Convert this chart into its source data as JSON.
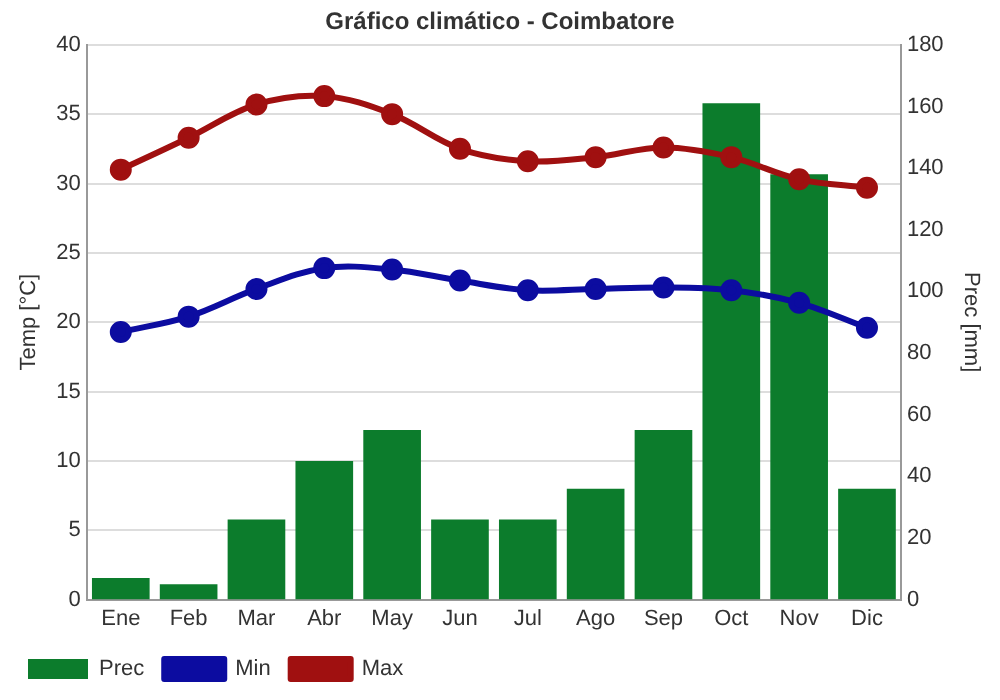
{
  "chart_data": {
    "type": "line",
    "title": "Gráfico climático - Coimbatore",
    "ylabel": "Temp [°C]",
    "y2label": "Prec [mm]",
    "categories": [
      "Ene",
      "Feb",
      "Mar",
      "Abr",
      "May",
      "Jun",
      "Jul",
      "Ago",
      "Sep",
      "Oct",
      "Nov",
      "Dic"
    ],
    "series": [
      {
        "name": "Prec",
        "type": "bar",
        "axis": "y2",
        "color": "#0c7c2c",
        "values": [
          7,
          5,
          26,
          45,
          55,
          26,
          26,
          36,
          55,
          161,
          138,
          36
        ]
      },
      {
        "name": "Min",
        "color": "#0c0ca0",
        "values": [
          19.3,
          20.4,
          22.4,
          23.9,
          23.8,
          23.0,
          22.3,
          22.4,
          22.5,
          22.3,
          21.4,
          19.6
        ]
      },
      {
        "name": "Max",
        "color": "#a01010",
        "values": [
          31.0,
          33.3,
          35.7,
          36.3,
          35.0,
          32.5,
          31.6,
          31.9,
          32.6,
          31.9,
          30.3,
          29.7
        ]
      }
    ],
    "ylim": [
      0,
      40
    ],
    "yticks": [
      0,
      5,
      10,
      15,
      20,
      25,
      30,
      35,
      40
    ],
    "y2lim": [
      0,
      180
    ],
    "y2ticks": [
      0,
      20,
      40,
      60,
      80,
      100,
      120,
      140,
      160,
      180
    ],
    "grid": "y",
    "legend": "bottom",
    "marker": "circle",
    "line_style": "solid"
  }
}
